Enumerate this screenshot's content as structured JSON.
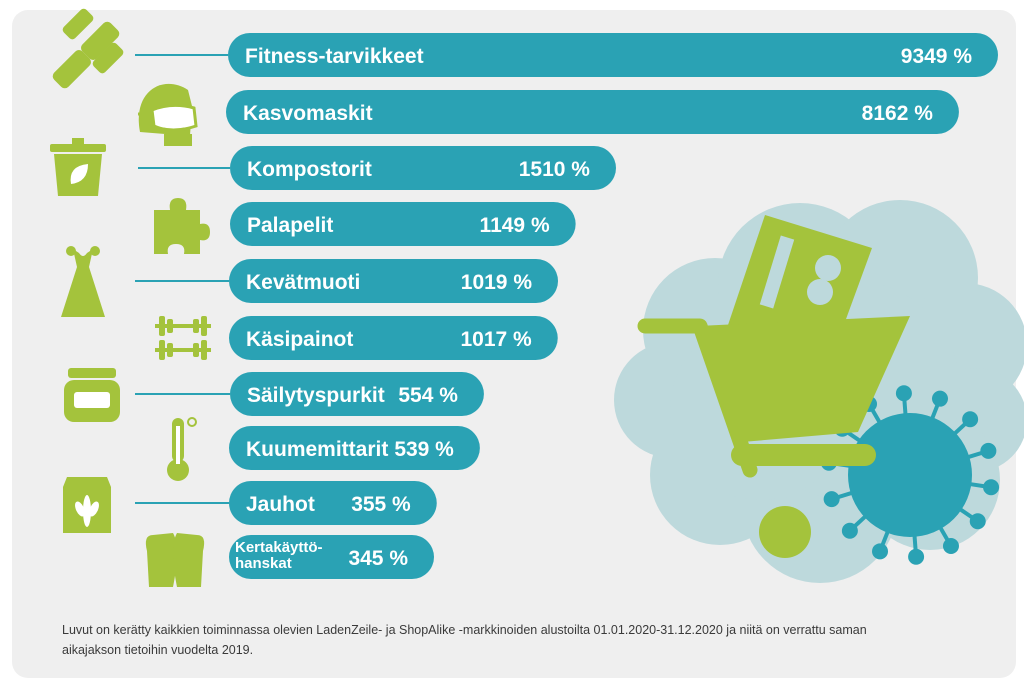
{
  "colors": {
    "bar": "#2aa2b4",
    "icon": "#a4c33c",
    "text": "#ffffff",
    "cloud": "#bdd9dc",
    "virus": "#2aa2b4",
    "background": "#efefef",
    "leader": "#2aa2b4"
  },
  "chart_data": {
    "type": "bar",
    "orientation": "horizontal",
    "unit": "%",
    "categories": [
      "Fitness-tarvikkeet",
      "Kasvomaskit",
      "Kompostorit",
      "Palapelit",
      "Kevätmuoti",
      "Käsipainot",
      "Säilytyspurkit",
      "Kuumemittarit",
      "Jauhot",
      "Kertakäyttö-hanskat"
    ],
    "values": [
      9349,
      8162,
      1510,
      1149,
      1019,
      1017,
      554,
      539,
      355,
      345
    ],
    "value_labels": [
      "9349 %",
      "8162 %",
      "1510 %",
      "1149 %",
      "1019 %",
      "1017 %",
      "554 %",
      "539 %",
      "355 %",
      "345 %"
    ],
    "icons": [
      "dumbbell-icon",
      "face-mask-icon",
      "compost-bin-icon",
      "puzzle-icon",
      "dress-icon",
      "weights-icon",
      "jar-icon",
      "thermometer-icon",
      "flour-bag-icon",
      "gloves-icon"
    ]
  },
  "footnote": "Luvut on kerätty kaikkien toiminnassa olevien LadenZeile- ja ShopAlike -markkinoiden alustoilta 01.01.2020-31.12.2020 ja niitä on verrattu saman aikajakson tietoihin vuodelta 2019."
}
